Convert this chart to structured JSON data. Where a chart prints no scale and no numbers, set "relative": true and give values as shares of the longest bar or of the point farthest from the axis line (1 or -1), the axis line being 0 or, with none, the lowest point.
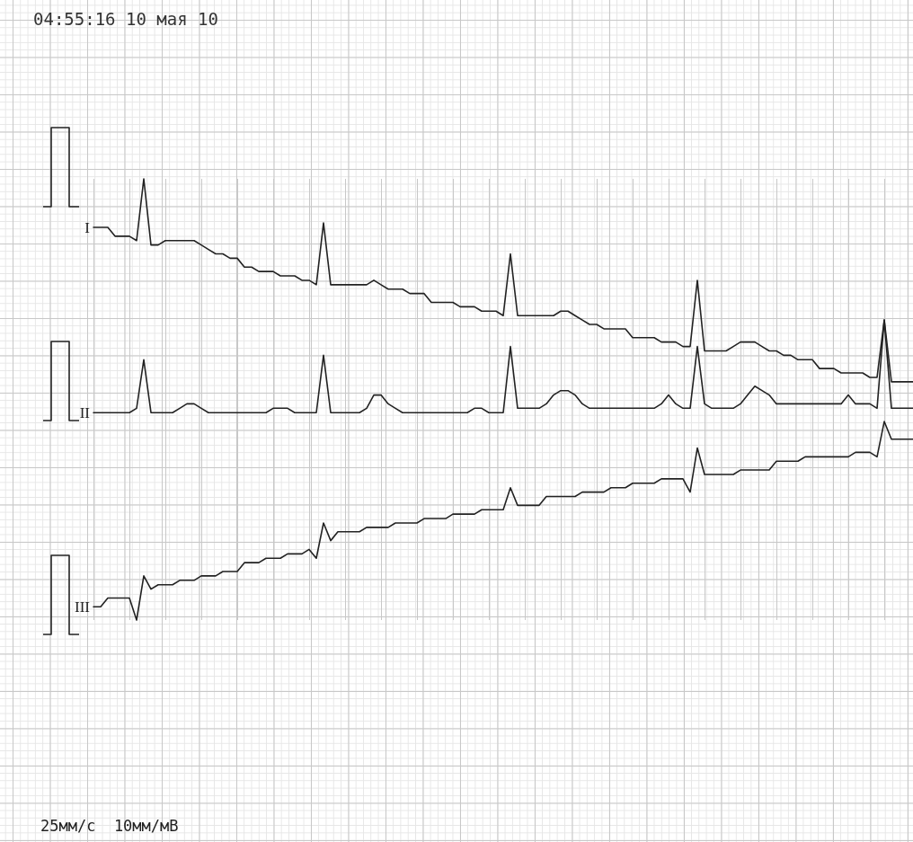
{
  "chart_data": {
    "type": "line",
    "title": "04:55:16 10 мая 10",
    "annotations": [
      "25мм/с  10мм/мВ"
    ],
    "relative": true,
    "grid": true,
    "tick_labels": false,
    "marker": "none",
    "line_style": "solid",
    "categories": [
      null,
      null,
      null,
      null,
      null,
      null,
      null,
      null,
      null,
      null,
      null,
      null,
      null,
      null,
      null,
      null,
      null,
      null,
      null,
      null,
      null,
      null,
      null,
      null,
      null,
      null,
      null,
      null,
      null,
      null,
      null,
      null,
      null,
      null,
      null,
      null,
      null,
      null,
      null,
      null,
      null,
      null,
      null,
      null,
      null,
      null,
      null,
      null,
      null,
      null,
      null,
      null,
      null,
      null,
      null,
      null,
      null,
      null,
      null,
      null,
      null,
      null,
      null,
      null,
      null,
      null,
      null,
      null,
      null,
      null,
      null,
      null,
      null,
      null,
      null,
      null,
      null,
      null,
      null,
      null,
      null,
      null,
      null,
      null,
      null,
      null,
      null,
      null,
      null,
      null,
      null,
      null,
      null,
      null,
      null,
      null,
      null,
      null,
      null,
      null,
      null,
      null,
      null,
      null,
      null,
      null,
      null,
      null,
      null,
      null,
      null,
      null,
      null,
      null,
      null
    ],
    "series": [
      {
        "name": "I",
        "color": "#222222",
        "values": [
          0.89,
          0.89,
          0.89,
          0.87,
          0.87,
          0.87,
          0.86,
          1,
          0.85,
          0.85,
          0.86,
          0.86,
          0.86,
          0.86,
          0.86,
          0.85,
          0.84,
          0.83,
          0.83,
          0.82,
          0.82,
          0.8,
          0.8,
          0.79,
          0.79,
          0.79,
          0.78,
          0.78,
          0.78,
          0.77,
          0.77,
          0.76,
          0.9,
          0.76,
          0.76,
          0.76,
          0.76,
          0.76,
          0.76,
          0.77,
          0.76,
          0.75,
          0.75,
          0.75,
          0.74,
          0.74,
          0.74,
          0.72,
          0.72,
          0.72,
          0.72,
          0.71,
          0.71,
          0.71,
          0.7,
          0.7,
          0.7,
          0.69,
          0.83,
          0.69,
          0.69,
          0.69,
          0.69,
          0.69,
          0.69,
          0.7,
          0.7,
          0.69,
          0.68,
          0.67,
          0.67,
          0.66,
          0.66,
          0.66,
          0.66,
          0.64,
          0.64,
          0.64,
          0.64,
          0.63,
          0.63,
          0.63,
          0.62,
          0.62,
          0.77,
          0.61,
          0.61,
          0.61,
          0.61,
          0.62,
          0.63,
          0.63,
          0.63,
          0.62,
          0.61,
          0.61,
          0.6,
          0.6,
          0.59,
          0.59,
          0.59,
          0.57,
          0.57,
          0.57,
          0.56,
          0.56,
          0.56,
          0.56,
          0.55,
          0.55,
          0.68,
          0.54,
          0.54,
          0.54,
          0.54
        ]
      },
      {
        "name": "II",
        "color": "#222222",
        "values": [
          0.47,
          0.47,
          0.47,
          0.47,
          0.47,
          0.47,
          0.48,
          0.59,
          0.47,
          0.47,
          0.47,
          0.47,
          0.48,
          0.49,
          0.49,
          0.48,
          0.47,
          0.47,
          0.47,
          0.47,
          0.47,
          0.47,
          0.47,
          0.47,
          0.47,
          0.48,
          0.48,
          0.48,
          0.47,
          0.47,
          0.47,
          0.47,
          0.6,
          0.47,
          0.47,
          0.47,
          0.47,
          0.47,
          0.48,
          0.51,
          0.51,
          0.49,
          0.48,
          0.47,
          0.47,
          0.47,
          0.47,
          0.47,
          0.47,
          0.47,
          0.47,
          0.47,
          0.47,
          0.48,
          0.48,
          0.47,
          0.47,
          0.47,
          0.62,
          0.48,
          0.48,
          0.48,
          0.48,
          0.49,
          0.51,
          0.52,
          0.52,
          0.51,
          0.49,
          0.48,
          0.48,
          0.48,
          0.48,
          0.48,
          0.48,
          0.48,
          0.48,
          0.48,
          0.48,
          0.49,
          0.51,
          0.49,
          0.48,
          0.48,
          0.62,
          0.49,
          0.48,
          0.48,
          0.48,
          0.48,
          0.49,
          0.51,
          0.53,
          0.52,
          0.51,
          0.49,
          0.49,
          0.49,
          0.49,
          0.49,
          0.49,
          0.49,
          0.49,
          0.49,
          0.49,
          0.51,
          0.49,
          0.49,
          0.49,
          0.48,
          0.68,
          0.48,
          0.48,
          0.48,
          0.48
        ]
      },
      {
        "name": "III",
        "color": "#222222",
        "values": [
          0.03,
          0.03,
          0.05,
          0.05,
          0.05,
          0.05,
          0,
          0.1,
          0.07,
          0.08,
          0.08,
          0.08,
          0.09,
          0.09,
          0.09,
          0.1,
          0.1,
          0.1,
          0.11,
          0.11,
          0.11,
          0.13,
          0.13,
          0.13,
          0.14,
          0.14,
          0.14,
          0.15,
          0.15,
          0.15,
          0.16,
          0.14,
          0.22,
          0.18,
          0.2,
          0.2,
          0.2,
          0.2,
          0.21,
          0.21,
          0.21,
          0.21,
          0.22,
          0.22,
          0.22,
          0.22,
          0.23,
          0.23,
          0.23,
          0.23,
          0.24,
          0.24,
          0.24,
          0.24,
          0.25,
          0.25,
          0.25,
          0.25,
          0.3,
          0.26,
          0.26,
          0.26,
          0.26,
          0.28,
          0.28,
          0.28,
          0.28,
          0.28,
          0.29,
          0.29,
          0.29,
          0.29,
          0.3,
          0.3,
          0.3,
          0.31,
          0.31,
          0.31,
          0.31,
          0.32,
          0.32,
          0.32,
          0.32,
          0.29,
          0.39,
          0.33,
          0.33,
          0.33,
          0.33,
          0.33,
          0.34,
          0.34,
          0.34,
          0.34,
          0.34,
          0.36,
          0.36,
          0.36,
          0.36,
          0.37,
          0.37,
          0.37,
          0.37,
          0.37,
          0.37,
          0.37,
          0.38,
          0.38,
          0.38,
          0.37,
          0.45,
          0.41,
          0.41,
          0.41,
          0.41
        ]
      }
    ]
  }
}
